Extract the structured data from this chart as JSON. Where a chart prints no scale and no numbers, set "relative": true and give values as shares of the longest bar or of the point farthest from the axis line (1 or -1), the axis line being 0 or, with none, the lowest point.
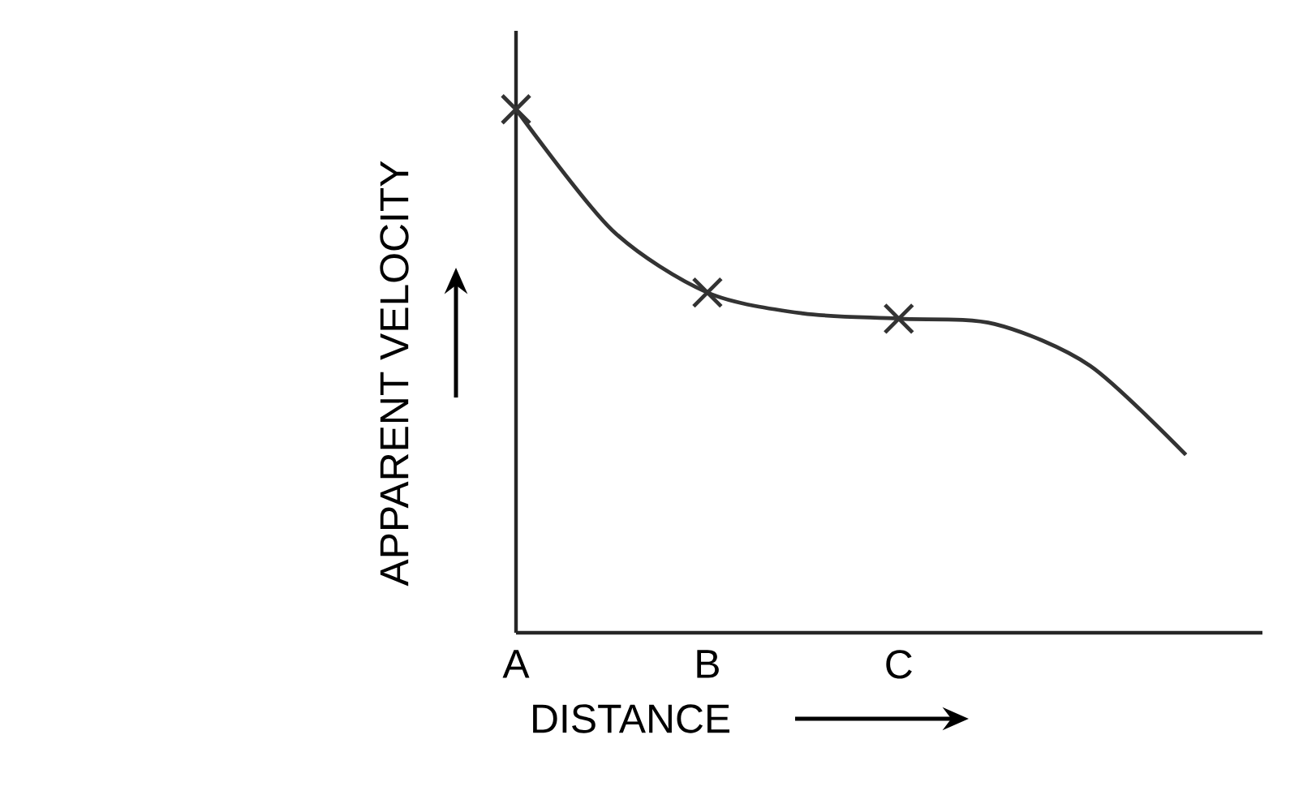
{
  "chart_data": {
    "type": "line",
    "relative": true,
    "xlabel": "DISTANCE",
    "ylabel": "APPARENT VELOCITY",
    "categories": [
      "A",
      null,
      "B",
      null,
      "C",
      null,
      null,
      null
    ],
    "series": [
      {
        "color": "#333333",
        "marker": "none",
        "line_style": "solid",
        "values": [
          1.0,
          0.77,
          0.65,
          0.61,
          0.6,
          0.59,
          0.51,
          0.34
        ]
      },
      {
        "type": "scatter",
        "color": "#333333",
        "marker": "cross",
        "x": [
          "A",
          "B",
          "C"
        ],
        "values": [
          1.0,
          0.65,
          0.6
        ]
      }
    ]
  }
}
